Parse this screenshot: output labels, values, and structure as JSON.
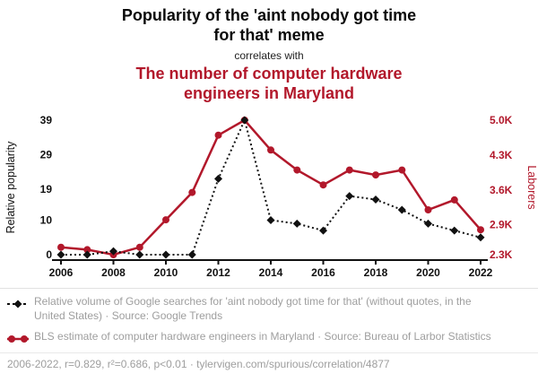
{
  "colors": {
    "accent_red": "#b2182b",
    "text_black": "#111111",
    "text_gray": "#9e9e9e"
  },
  "header": {
    "title": "Popularity of the 'aint nobody got time for that' meme",
    "connector": "correlates with",
    "correlated_title": "The number of computer hardware engineers in Maryland"
  },
  "chart_data": {
    "type": "line",
    "title": "Popularity of the 'aint nobody got time for that' meme",
    "subtitle": "The number of computer hardware engineers in Maryland",
    "x": [
      2006,
      2007,
      2008,
      2009,
      2010,
      2011,
      2012,
      2013,
      2014,
      2015,
      2016,
      2017,
      2018,
      2019,
      2020,
      2021,
      2022
    ],
    "x_ticks": [
      2006,
      2008,
      2010,
      2012,
      2014,
      2016,
      2018,
      2020,
      2022
    ],
    "left_axis": {
      "label": "Relative popularity",
      "ticks": [
        "0",
        "10",
        "19",
        "29",
        "39"
      ],
      "tick_values": [
        0,
        10,
        19,
        29,
        39
      ],
      "range": [
        0,
        39
      ]
    },
    "right_axis": {
      "label": "Laborers",
      "ticks": [
        "2.3K",
        "2.9K",
        "3.6K",
        "4.3K",
        "5.0K"
      ],
      "tick_values": [
        2.3,
        2.9,
        3.6,
        4.3,
        5.0
      ],
      "range": [
        2.3,
        5.0
      ]
    },
    "grid": false,
    "legend_position": "bottom",
    "series": [
      {
        "name": "google-trends-search-volume",
        "axis": "left",
        "color": "#111111",
        "style": "dotted",
        "marker": "diamond",
        "values": [
          0,
          0,
          1,
          0,
          0,
          0,
          22,
          39,
          10,
          9,
          7,
          17,
          16,
          13,
          9,
          7,
          5
        ]
      },
      {
        "name": "md-computer-hardware-engineers",
        "axis": "right",
        "color": "#b2182b",
        "style": "solid",
        "marker": "circle",
        "values": [
          2.45,
          2.4,
          2.3,
          2.45,
          3.0,
          3.55,
          4.7,
          5.0,
          4.4,
          4.0,
          3.7,
          4.0,
          3.9,
          4.0,
          3.2,
          3.4,
          2.8
        ]
      }
    ]
  },
  "legend": [
    {
      "icon": "dashed-line-diamond-icon",
      "text": "Relative volume of Google searches for 'aint nobody got time for that' (without quotes, in the United States) · Source: Google Trends"
    },
    {
      "icon": "red-line-circle-icon",
      "text": "BLS estimate of computer hardware engineers in Maryland · Source: Bureau of Larbor Statistics"
    }
  ],
  "footer": {
    "text": "2006-2022, r=0.829, r²=0.686, p<0.01 · tylervigen.com/spurious/correlation/4877"
  }
}
